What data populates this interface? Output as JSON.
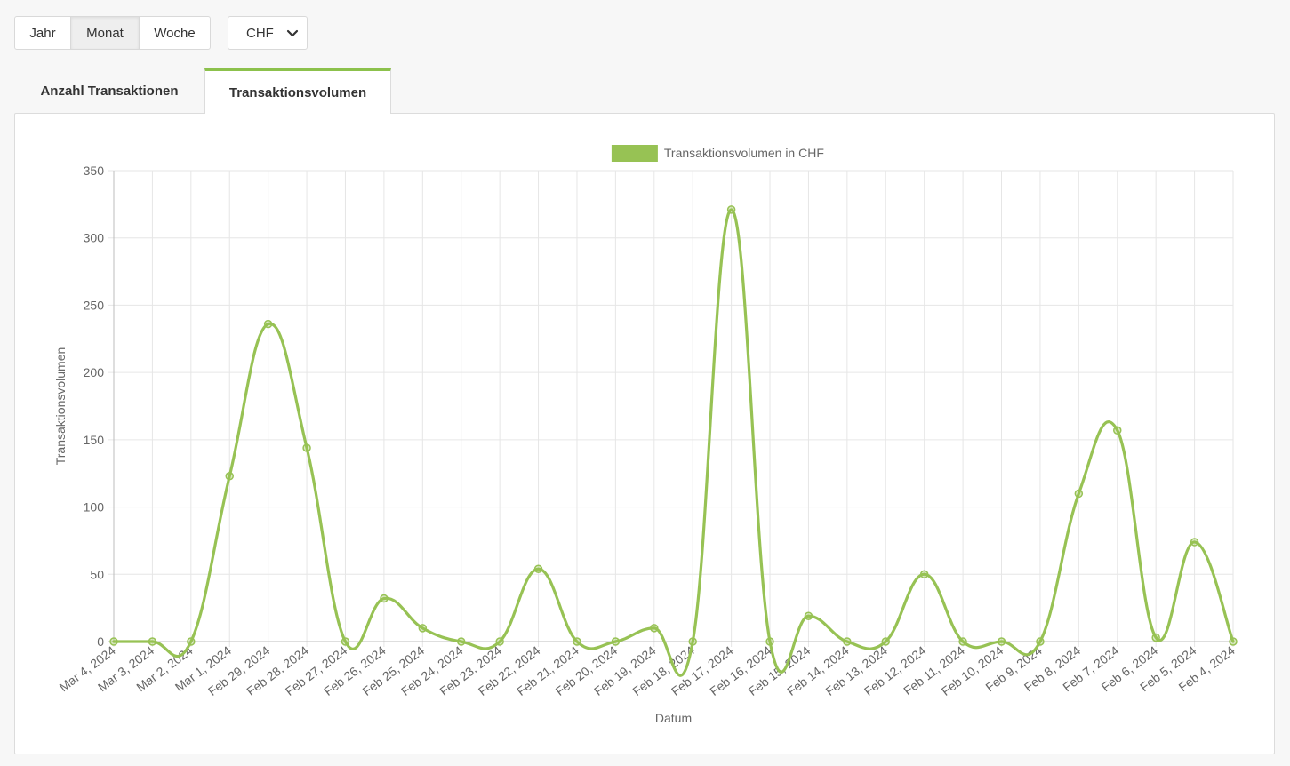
{
  "controls": {
    "period_buttons": [
      {
        "label": "Jahr",
        "active": false
      },
      {
        "label": "Monat",
        "active": true
      },
      {
        "label": "Woche",
        "active": false
      }
    ],
    "currency": {
      "selected": "CHF",
      "icon": "chevron-down-icon"
    }
  },
  "tabs": [
    {
      "label": "Anzahl Transaktionen",
      "active": false
    },
    {
      "label": "Transaktionsvolumen",
      "active": true
    }
  ],
  "colors": {
    "series": "#97c254",
    "accent": "#8cc14c",
    "grid": "#e6e6e6",
    "axis_text": "#666666"
  },
  "chart_data": {
    "type": "line",
    "legend": {
      "label": "Transaktionsvolumen in CHF",
      "position": "top"
    },
    "xlabel": "Datum",
    "ylabel": "Transaktionsvolumen",
    "ylim": [
      0,
      350
    ],
    "yticks": [
      0,
      50,
      100,
      150,
      200,
      250,
      300,
      350
    ],
    "grid": true,
    "categories": [
      "Mar 4, 2024",
      "Mar 3, 2024",
      "Mar 2, 2024",
      "Mar 1, 2024",
      "Feb 29, 2024",
      "Feb 28, 2024",
      "Feb 27, 2024",
      "Feb 26, 2024",
      "Feb 25, 2024",
      "Feb 24, 2024",
      "Feb 23, 2024",
      "Feb 22, 2024",
      "Feb 21, 2024",
      "Feb 20, 2024",
      "Feb 19, 2024",
      "Feb 18, 2024",
      "Feb 17, 2024",
      "Feb 16, 2024",
      "Feb 15, 2024",
      "Feb 14, 2024",
      "Feb 13, 2024",
      "Feb 12, 2024",
      "Feb 11, 2024",
      "Feb 10, 2024",
      "Feb 9, 2024",
      "Feb 8, 2024",
      "Feb 7, 2024",
      "Feb 6, 2024",
      "Feb 5, 2024",
      "Feb 4, 2024"
    ],
    "series": [
      {
        "name": "Transaktionsvolumen in CHF",
        "values": [
          0,
          0,
          0,
          123,
          236,
          144,
          0,
          32,
          10,
          0,
          0,
          54,
          0,
          0,
          10,
          0,
          321,
          0,
          19,
          0,
          0,
          50,
          0,
          0,
          0,
          110,
          157,
          3,
          74,
          0
        ]
      }
    ]
  }
}
